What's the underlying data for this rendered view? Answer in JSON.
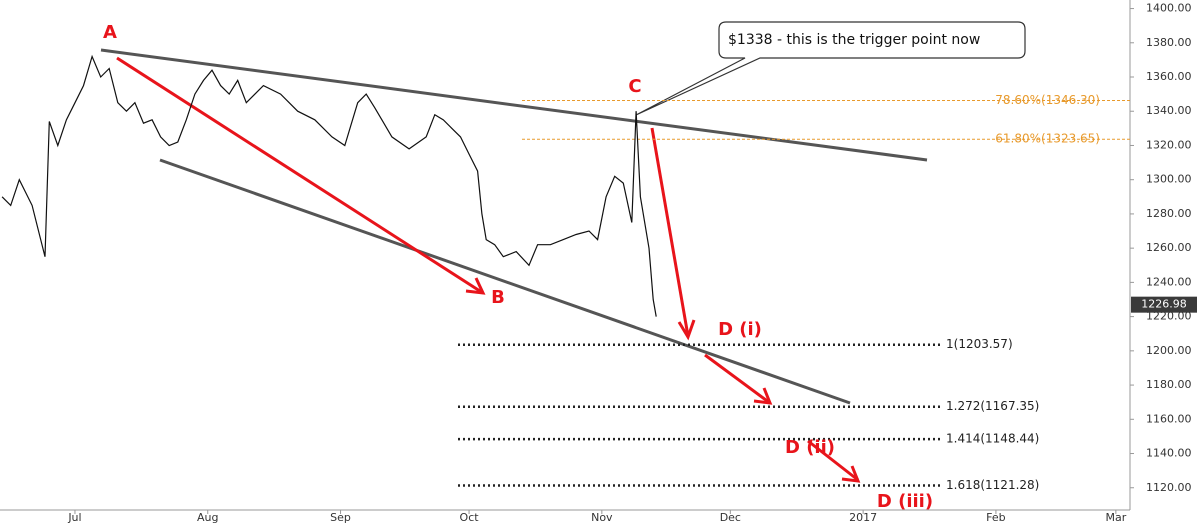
{
  "chart_data": {
    "type": "line",
    "color": "#111111",
    "x": [
      -17,
      -15,
      -13,
      -10,
      -8,
      -7,
      -6,
      -4,
      -2,
      0,
      2,
      4,
      6,
      8,
      10,
      12,
      14,
      16,
      18,
      20,
      22,
      24,
      26,
      28,
      30,
      32,
      34,
      36,
      38,
      40,
      44,
      48,
      52,
      56,
      60,
      63,
      66,
      68,
      70,
      74,
      78,
      82,
      84,
      86,
      88,
      90,
      92,
      94,
      95,
      96,
      98,
      100,
      103,
      106,
      108,
      111,
      114,
      117,
      120,
      122,
      124,
      126,
      128,
      130,
      131,
      132,
      134,
      135,
      135.7
    ],
    "values": [
      1290,
      1285,
      1300,
      1285,
      1265,
      1255,
      1334,
      1320,
      1335,
      1345,
      1355,
      1372,
      1360,
      1365,
      1345,
      1340,
      1345,
      1333,
      1335,
      1325,
      1320,
      1322,
      1335,
      1350,
      1358,
      1364,
      1355,
      1350,
      1358,
      1345,
      1355,
      1350,
      1340,
      1335,
      1325,
      1320,
      1345,
      1350,
      1342,
      1325,
      1318,
      1325,
      1338,
      1335,
      1330,
      1325,
      1315,
      1305,
      1280,
      1265,
      1262,
      1255,
      1258,
      1250,
      1262,
      1262,
      1265,
      1268,
      1270,
      1265,
      1290,
      1302,
      1298,
      1275,
      1340,
      1290,
      1260,
      1230,
      1220
    ],
    "xlim": [
      -17.5,
      246.3
    ],
    "xticks": [
      {
        "value": 0,
        "label": "Jul"
      },
      {
        "value": 31,
        "label": "Aug"
      },
      {
        "value": 62,
        "label": "Sep"
      },
      {
        "value": 92,
        "label": "Oct"
      },
      {
        "value": 123,
        "label": "Nov"
      },
      {
        "value": 153,
        "label": "Dec"
      },
      {
        "value": 184,
        "label": "2017"
      },
      {
        "value": 215,
        "label": "Feb"
      },
      {
        "value": 243,
        "label": "Mar"
      }
    ],
    "ylim": [
      1107,
      1405
    ],
    "yticks": [
      {
        "value": 1120,
        "label": "1120.00"
      },
      {
        "value": 1140,
        "label": "1140.00"
      },
      {
        "value": 1160,
        "label": "1160.00"
      },
      {
        "value": 1180,
        "label": "1180.00"
      },
      {
        "value": 1200,
        "label": "1200.00"
      },
      {
        "value": 1220,
        "label": "1220.00"
      },
      {
        "value": 1240,
        "label": "1240.00"
      },
      {
        "value": 1260,
        "label": "1260.00"
      },
      {
        "value": 1280,
        "label": "1280.00"
      },
      {
        "value": 1300,
        "label": "1300.00"
      },
      {
        "value": 1320,
        "label": "1320.00"
      },
      {
        "value": 1340,
        "label": "1340.00"
      },
      {
        "value": 1360,
        "label": "1360.00"
      },
      {
        "value": 1380,
        "label": "1380.00"
      },
      {
        "value": 1400,
        "label": "1400.00"
      }
    ],
    "last_price": 1226.98,
    "fib_retracements": [
      {
        "value": 1346.3,
        "label": "78.60%(1346.30)"
      },
      {
        "value": 1323.65,
        "label": "61.80%(1323.65)"
      }
    ],
    "fib_extensions": [
      {
        "value": 1203.57,
        "label": "1(1203.57)"
      },
      {
        "value": 1167.35,
        "label": "1.272(1167.35)"
      },
      {
        "value": 1148.44,
        "label": "1.414(1148.44)"
      },
      {
        "value": 1121.28,
        "label": "1.618(1121.28)"
      }
    ],
    "wave_labels": [
      "A",
      "B",
      "C",
      "D (i)",
      "D (ii)",
      "D (iii)"
    ],
    "callout": "$1338 - this is the trigger point now"
  }
}
